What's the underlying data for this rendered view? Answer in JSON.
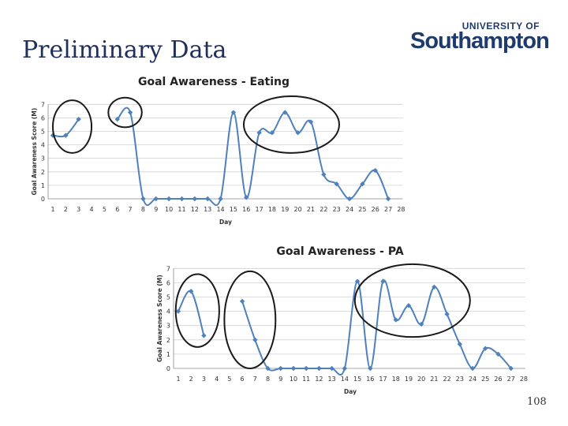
{
  "slide": {
    "title": "Preliminary Data",
    "page_number": "108",
    "logo": {
      "top": "UNIVERSITY OF",
      "main": "Southampton"
    }
  },
  "chart_data": [
    {
      "type": "line",
      "title": "Goal Awareness - Eating",
      "xlabel": "Day",
      "ylabel": "Goal Awareness Score (M)",
      "xlim": [
        1,
        28
      ],
      "ylim": [
        0,
        7
      ],
      "grid": true,
      "series_color": "#4f81bd",
      "series": [
        {
          "segments": [
            {
              "x": [
                1,
                2,
                3
              ],
              "y": [
                4.7,
                4.7,
                5.9
              ]
            },
            {
              "x": [
                6,
                7,
                8,
                9,
                10,
                11,
                12,
                13,
                14,
                15,
                16,
                17,
                18,
                19,
                20,
                21,
                22,
                23,
                24,
                25,
                26,
                27
              ],
              "y": [
                5.9,
                6.4,
                0,
                0,
                0,
                0,
                0,
                0,
                0,
                6.4,
                0.1,
                4.9,
                4.9,
                6.4,
                4.9,
                5.7,
                1.8,
                1.1,
                0,
                1.1,
                2.1,
                0
              ]
            }
          ]
        }
      ],
      "annotations": [
        {
          "shape": "ellipse",
          "x": [
            1,
            4
          ],
          "y": [
            3.4,
            7.3
          ]
        },
        {
          "shape": "ellipse",
          "x": [
            5.3,
            7.9
          ],
          "y": [
            5.3,
            7.5
          ]
        },
        {
          "shape": "ellipse",
          "x": [
            15.8,
            23.2
          ],
          "y": [
            3.4,
            7.6
          ]
        }
      ]
    },
    {
      "type": "line",
      "title": "Goal Awareness - PA",
      "xlabel": "Day",
      "ylabel": "Goal Awareness Score (M)",
      "xlim": [
        1,
        28
      ],
      "ylim": [
        0,
        7
      ],
      "grid": true,
      "series_color": "#4f81bd",
      "series": [
        {
          "segments": [
            {
              "x": [
                1,
                2,
                3
              ],
              "y": [
                4,
                5.4,
                2.3
              ]
            },
            {
              "x": [
                6,
                7,
                8,
                9,
                10,
                11,
                12,
                13,
                14,
                15,
                16,
                17,
                18,
                19,
                20,
                21,
                22,
                23,
                24,
                25,
                26,
                27
              ],
              "y": [
                4.7,
                2,
                0,
                0,
                0,
                0,
                0,
                0,
                0,
                6.1,
                0,
                6.1,
                3.4,
                4.4,
                3.1,
                5.7,
                3.8,
                1.7,
                0,
                1.4,
                1,
                0
              ]
            }
          ]
        }
      ],
      "annotations": [
        {
          "shape": "ellipse",
          "x": [
            0.8,
            4.2
          ],
          "y": [
            1.5,
            6.6
          ]
        },
        {
          "shape": "ellipse",
          "x": [
            4.6,
            8.6
          ],
          "y": [
            0,
            6.8
          ]
        },
        {
          "shape": "ellipse",
          "x": [
            14.8,
            23.8
          ],
          "y": [
            2.2,
            7.3
          ]
        }
      ]
    }
  ]
}
